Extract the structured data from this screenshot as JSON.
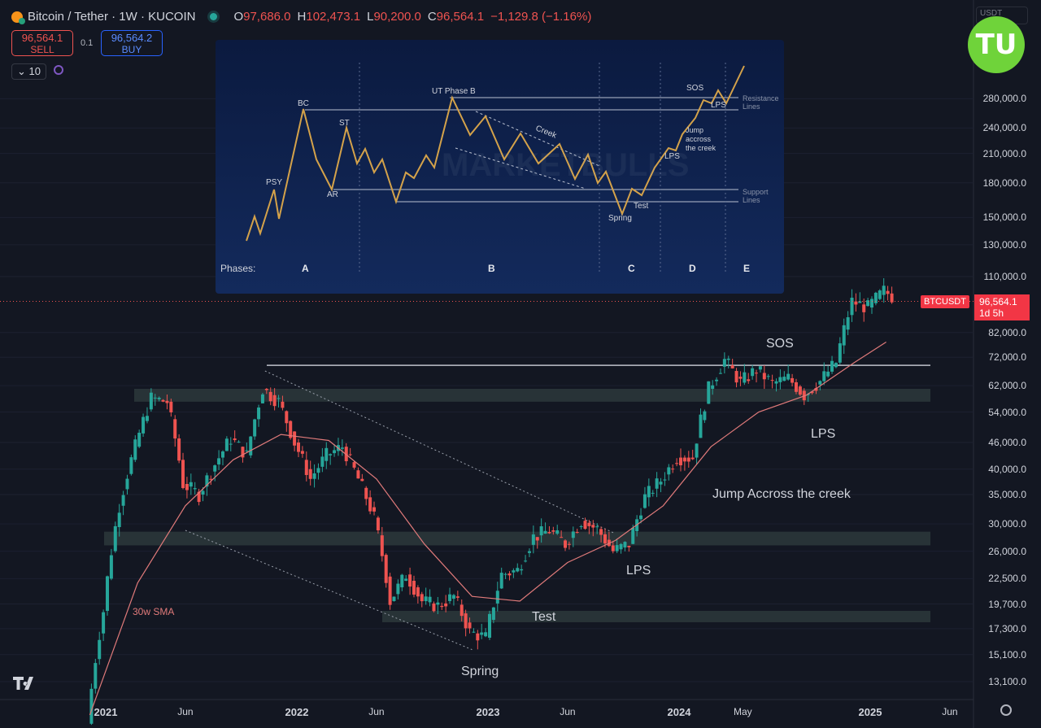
{
  "header": {
    "symbol": "Bitcoin / Tether · 1W · KUCOIN",
    "o_label": "O",
    "o_value": "97,686.0",
    "h_label": "H",
    "h_value": "102,473.1",
    "l_label": "L",
    "l_value": "90,200.0",
    "c_label": "C",
    "c_value": "96,564.1",
    "change": "−1,129.8 (−1.16%)"
  },
  "trade": {
    "sell_price": "96,564.1",
    "sell_label": "SELL",
    "spread": "0.1",
    "buy_price": "96,564.2",
    "buy_label": "BUY"
  },
  "volume_indicator": "10",
  "currency_selector": "USDT",
  "logo_text": "TU",
  "price_tag": {
    "symbol": "BTCUSDT",
    "price": "96,564.1",
    "countdown": "1d 5h"
  },
  "colors": {
    "up": "#26a69a",
    "down": "#ef5350",
    "sma": "#e07a7a",
    "zone": "#3b4a48",
    "inset_bg": "#0d1b3d",
    "inset_line": "#d4a24a"
  },
  "annotations": {
    "sos": "SOS",
    "lps_right": "LPS",
    "jump": "Jump Accross the creek",
    "lps_mid": "LPS",
    "test": "Test",
    "spring": "Spring",
    "sma": "30w SMA"
  },
  "inset": {
    "labels": {
      "psy": "PSY",
      "bc": "BC",
      "st": "ST",
      "ar": "AR",
      "ut": "UT Phase B",
      "creek": "Creek",
      "sos": "SOS",
      "lps_top": "LPS",
      "jump": "Jump\naccross\nthe creek",
      "lps_low": "LPS",
      "spring": "Spring",
      "test": "Test",
      "resistance": "Resistance\nLines",
      "support": "Support\nLines",
      "watermark": "MARKETBULLS"
    },
    "phases_label": "Phases:",
    "phases": [
      "A",
      "B",
      "C",
      "D",
      "E"
    ]
  },
  "chart_data": {
    "type": "candlestick",
    "symbol": "BTCUSDT",
    "interval": "1W",
    "scale": "log",
    "y_ticks": [
      13100,
      15100,
      17300,
      19700,
      22500,
      26000,
      30000,
      35000,
      40000,
      46000,
      54000,
      62000,
      72000,
      82000,
      110000,
      130000,
      150000,
      180000,
      210000,
      240000,
      280000
    ],
    "x_ticks": [
      "2021",
      "Jun",
      "2022",
      "Jun",
      "2023",
      "Jun",
      "2024",
      "May",
      "2025",
      "Jun"
    ],
    "last_price": 96564.1,
    "series": [
      {
        "name": "BTCUSDT",
        "type": "close",
        "points": [
          [
            "2020-12",
            19000
          ],
          [
            "2021-01",
            33000
          ],
          [
            "2021-02",
            45000
          ],
          [
            "2021-03",
            58000
          ],
          [
            "2021-04",
            57000
          ],
          [
            "2021-05",
            37000
          ],
          [
            "2021-06",
            35000
          ],
          [
            "2021-07",
            41000
          ],
          [
            "2021-08",
            47000
          ],
          [
            "2021-09",
            43000
          ],
          [
            "2021-10",
            61000
          ],
          [
            "2021-11",
            57000
          ],
          [
            "2021-12",
            46000
          ],
          [
            "2022-01",
            38000
          ],
          [
            "2022-02",
            43000
          ],
          [
            "2022-03",
            45000
          ],
          [
            "2022-04",
            38000
          ],
          [
            "2022-05",
            31000
          ],
          [
            "2022-06",
            20000
          ],
          [
            "2022-07",
            23000
          ],
          [
            "2022-08",
            20000
          ],
          [
            "2022-09",
            19500
          ],
          [
            "2022-10",
            20500
          ],
          [
            "2022-11",
            17000
          ],
          [
            "2022-12",
            16500
          ],
          [
            "2023-01",
            23000
          ],
          [
            "2023-02",
            23500
          ],
          [
            "2023-03",
            28000
          ],
          [
            "2023-04",
            29000
          ],
          [
            "2023-05",
            27000
          ],
          [
            "2023-06",
            30500
          ],
          [
            "2023-07",
            29200
          ],
          [
            "2023-08",
            26000
          ],
          [
            "2023-09",
            27000
          ],
          [
            "2023-10",
            34500
          ],
          [
            "2023-11",
            37700
          ],
          [
            "2023-12",
            42500
          ],
          [
            "2024-01",
            42500
          ],
          [
            "2024-02",
            61000
          ],
          [
            "2024-03",
            71000
          ],
          [
            "2024-04",
            63000
          ],
          [
            "2024-05",
            67500
          ],
          [
            "2024-06",
            62700
          ],
          [
            "2024-07",
            64500
          ],
          [
            "2024-08",
            59000
          ],
          [
            "2024-09",
            63500
          ],
          [
            "2024-10",
            70000
          ],
          [
            "2024-11",
            96500
          ],
          [
            "2024-12",
            93500
          ],
          [
            "2025-01",
            102000
          ],
          [
            "2025-02",
            96564
          ]
        ]
      },
      {
        "name": "30w SMA",
        "type": "line",
        "points": [
          [
            "2020-12",
            11000
          ],
          [
            "2021-03",
            22000
          ],
          [
            "2021-06",
            33000
          ],
          [
            "2021-09",
            42000
          ],
          [
            "2021-12",
            48000
          ],
          [
            "2022-03",
            46500
          ],
          [
            "2022-06",
            38000
          ],
          [
            "2022-09",
            27000
          ],
          [
            "2022-12",
            20500
          ],
          [
            "2023-03",
            20000
          ],
          [
            "2023-06",
            24500
          ],
          [
            "2023-09",
            27500
          ],
          [
            "2023-12",
            33000
          ],
          [
            "2024-03",
            45000
          ],
          [
            "2024-06",
            54000
          ],
          [
            "2024-09",
            59000
          ],
          [
            "2024-12",
            70000
          ],
          [
            "2025-02",
            78000
          ]
        ]
      }
    ],
    "levels": [
      {
        "name": "Resistance",
        "value": 69000
      },
      {
        "name": "Zone",
        "range": [
          57000,
          61000
        ]
      },
      {
        "name": "Zone",
        "range": [
          26800,
          28800
        ]
      },
      {
        "name": "Zone",
        "range": [
          18000,
          19000
        ]
      }
    ],
    "annotations": [
      "SOS",
      "LPS",
      "Jump Accross the creek",
      "LPS",
      "Test",
      "Spring",
      "30w SMA"
    ]
  }
}
